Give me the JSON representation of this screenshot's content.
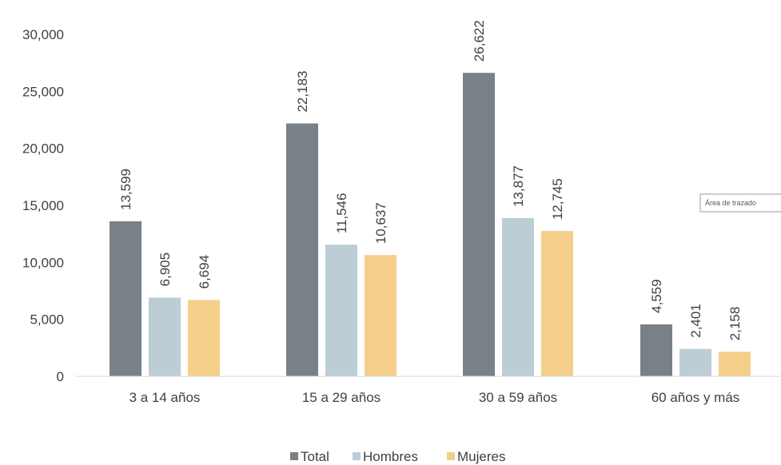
{
  "chart_data": {
    "type": "bar",
    "categories": [
      "3 a 14 años",
      "15 a 29 años",
      "30 a 59 años",
      "60 años y más"
    ],
    "series": [
      {
        "name": "Total",
        "color": "#7a8186",
        "values": [
          13599,
          22183,
          26622,
          4559
        ]
      },
      {
        "name": "Hombres",
        "color": "#bccdd6",
        "values": [
          6905,
          11546,
          13877,
          2401
        ]
      },
      {
        "name": "Mujeres",
        "color": "#f5cf8a",
        "values": [
          6694,
          10637,
          12745,
          2158
        ]
      }
    ],
    "data_labels": [
      [
        "13,599",
        "22,183",
        "26,622",
        "4,559"
      ],
      [
        "6,905",
        "11,546",
        "13,877",
        "2,401"
      ],
      [
        "6,694",
        "10,637",
        "12,745",
        "2,158"
      ]
    ],
    "y_ticks": [
      0,
      5000,
      10000,
      15000,
      20000,
      25000,
      30000
    ],
    "y_tick_labels": [
      "0",
      "5,000",
      "10,000",
      "15,000",
      "20,000",
      "25,000",
      "30,000"
    ],
    "ylim": [
      0,
      30000
    ],
    "grid": false,
    "legend_position": "bottom-center",
    "title": "",
    "xlabel": "",
    "ylabel": ""
  },
  "tooltip": {
    "text": "Área de trazado"
  }
}
